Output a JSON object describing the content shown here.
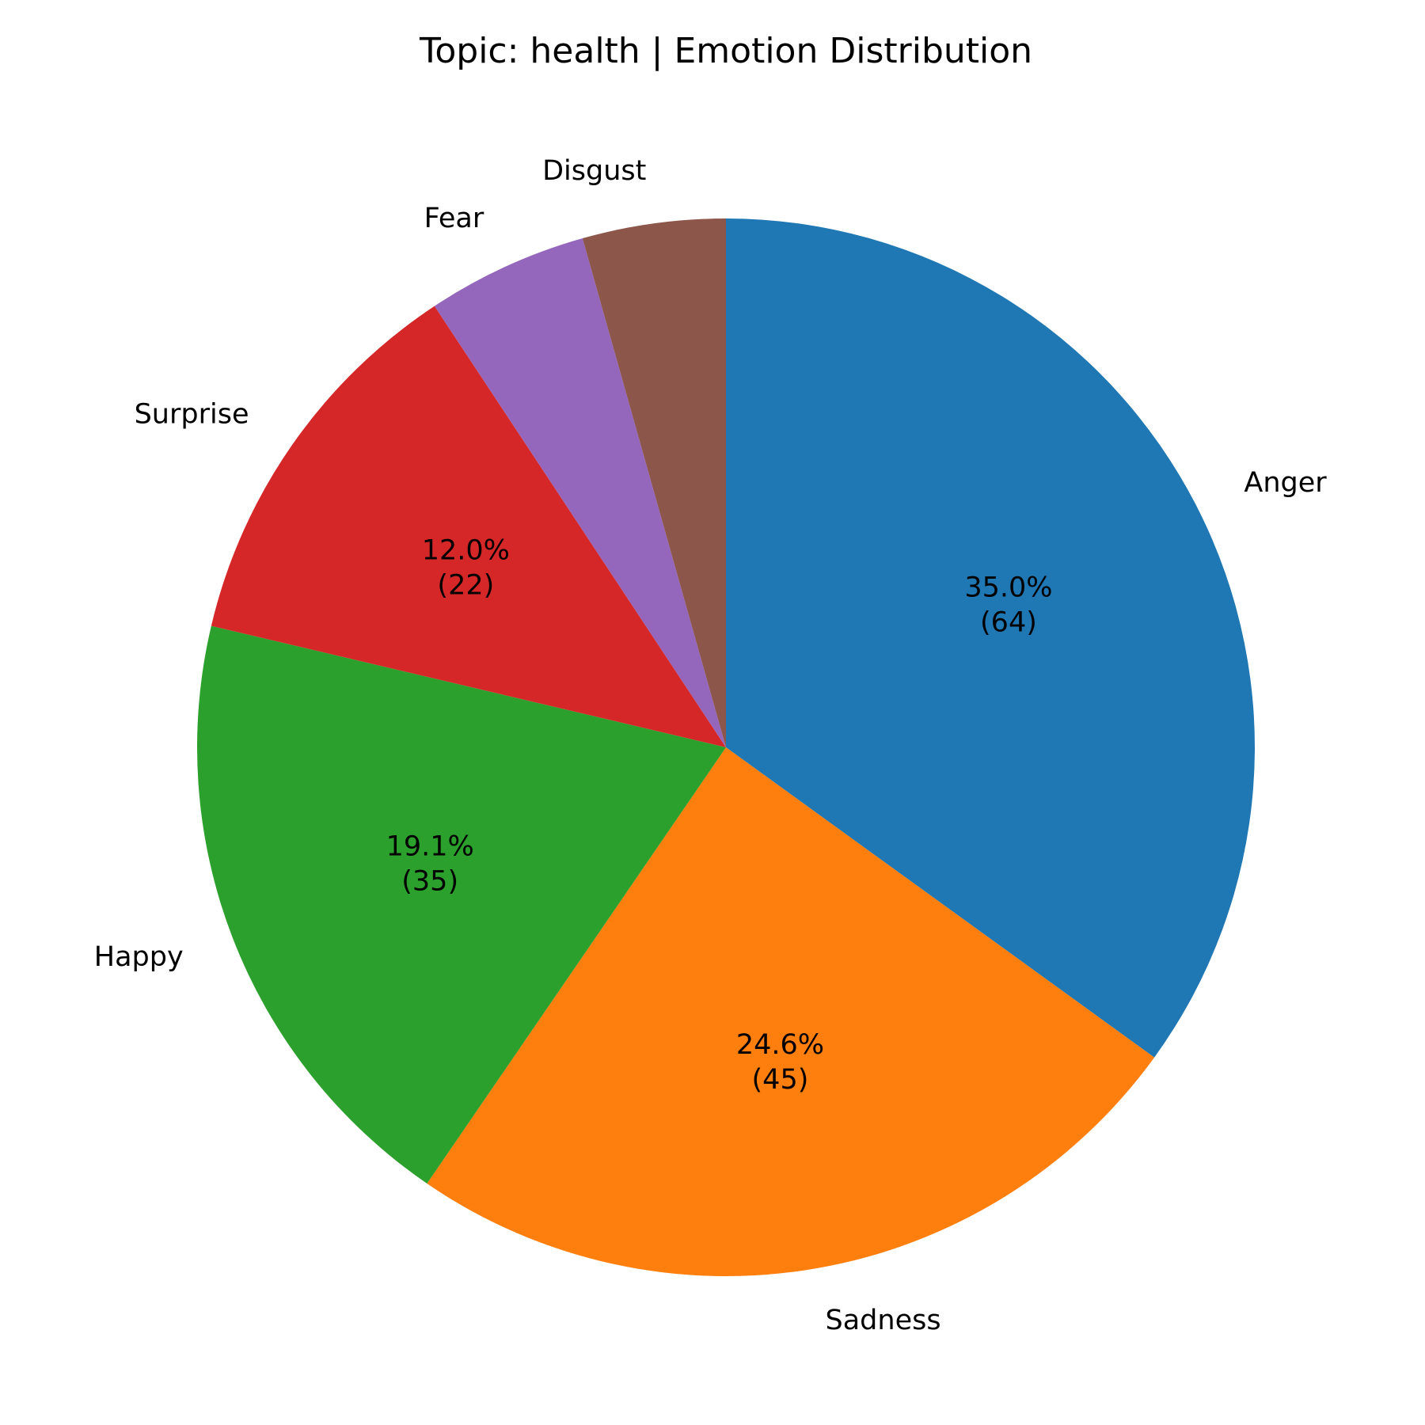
{
  "chart_data": {
    "type": "pie",
    "title": "Topic: health | Emotion Distribution",
    "start_angle_deg": 90,
    "direction": "clockwise",
    "slices": [
      {
        "label": "Anger",
        "value": 64,
        "percent_label": "35.0%",
        "count_label": "(64)",
        "color": "#1f77b4"
      },
      {
        "label": "Sadness",
        "value": 45,
        "percent_label": "24.6%",
        "count_label": "(45)",
        "color": "#ff7f0e"
      },
      {
        "label": "Happy",
        "value": 35,
        "percent_label": "19.1%",
        "count_label": "(35)",
        "color": "#2ca02c"
      },
      {
        "label": "Surprise",
        "value": 22,
        "percent_label": "12.0%",
        "count_label": "(22)",
        "color": "#d62728"
      },
      {
        "label": "Fear",
        "value": 9,
        "percent_label": "",
        "count_label": "",
        "color": "#9467bd"
      },
      {
        "label": "Disgust",
        "value": 8,
        "percent_label": "",
        "count_label": "",
        "color": "#8c564b"
      }
    ]
  }
}
